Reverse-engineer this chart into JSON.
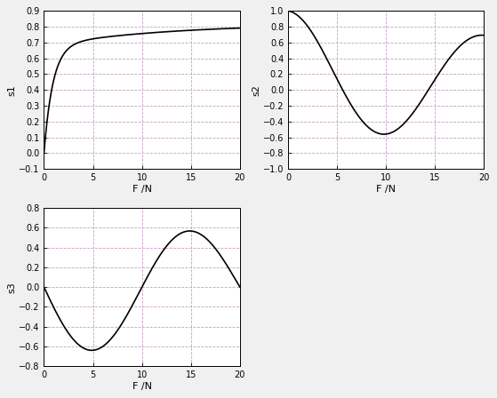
{
  "xlim": [
    0,
    20
  ],
  "xticks": [
    0,
    5,
    10,
    15,
    20
  ],
  "xlabel": "F /N",
  "plot1": {
    "ylabel": "s1",
    "ylim": [
      -0.1,
      0.9
    ],
    "yticks": [
      -0.1,
      0,
      0.1,
      0.2,
      0.3,
      0.4,
      0.5,
      0.6,
      0.7,
      0.8,
      0.9
    ]
  },
  "plot2": {
    "ylabel": "s2",
    "ylim": [
      -1,
      1
    ],
    "yticks": [
      -1,
      -0.8,
      -0.6,
      -0.4,
      -0.2,
      0,
      0.2,
      0.4,
      0.6,
      0.8,
      1
    ]
  },
  "plot3": {
    "ylabel": "s3",
    "ylim": [
      -0.8,
      0.8
    ],
    "yticks": [
      -0.8,
      -0.6,
      -0.4,
      -0.2,
      0,
      0.2,
      0.4,
      0.6,
      0.8
    ]
  },
  "line_color": "#000000",
  "line_width": 1.2,
  "grid_color": "#c8a0c8",
  "grid_linestyle": "--",
  "bg_color": "#ffffff",
  "spine_color": "#000000",
  "tick_color": "#000000",
  "tick_labelsize": 7,
  "label_fontsize": 8,
  "figsize": [
    5.59,
    4.48
  ],
  "dpi": 100
}
